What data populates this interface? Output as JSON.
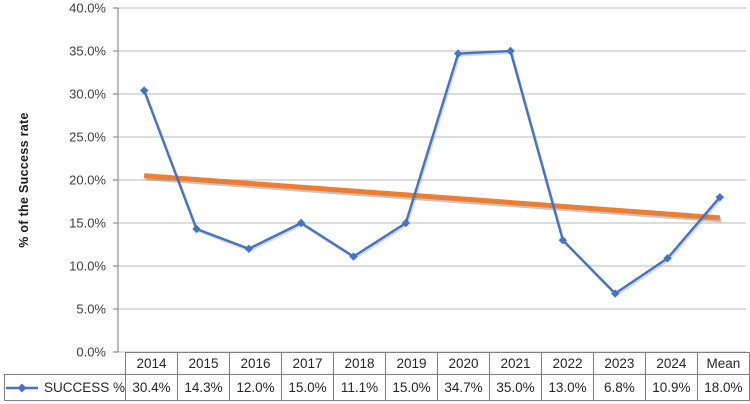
{
  "chart_data": {
    "type": "line",
    "categories": [
      "2014",
      "2015",
      "2016",
      "2017",
      "2018",
      "2019",
      "2020",
      "2021",
      "2022",
      "2023",
      "2024",
      "Mean"
    ],
    "series": [
      {
        "name": "SUCCESS %",
        "values": [
          30.4,
          14.3,
          12.0,
          15.0,
          11.1,
          15.0,
          34.7,
          35.0,
          13.0,
          6.8,
          10.9,
          18.0
        ],
        "labels": [
          "30.4%",
          "14.3%",
          "12.0%",
          "15.0%",
          "11.1%",
          "15.0%",
          "34.7%",
          "35.0%",
          "13.0%",
          "6.8%",
          "10.9%",
          "18.0%"
        ]
      }
    ],
    "trendline": {
      "start_value": 20.5,
      "end_value": 15.6
    },
    "title": "",
    "xlabel": "",
    "ylabel": "% of the Success rate",
    "ylim": [
      0,
      40
    ],
    "ytick_step": 5,
    "ytick_labels": [
      "0.0%",
      "5.0%",
      "10.0%",
      "15.0%",
      "20.0%",
      "25.0%",
      "30.0%",
      "35.0%",
      "40.0%"
    ],
    "grid": "horizontal",
    "legend_position": "bottom-table-left",
    "colors": {
      "series": "#4472C4",
      "trendline": "#ED7D31",
      "gridline": "#C6C6C6",
      "axis": "#8e8e8e",
      "table_border": "#7f7f7f",
      "text": "#262626"
    }
  }
}
